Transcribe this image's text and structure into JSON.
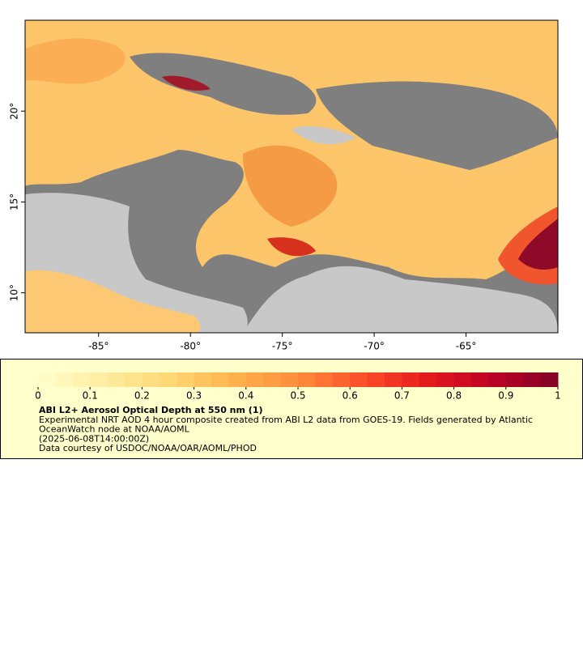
{
  "map": {
    "xlim": [
      -89,
      -60
    ],
    "ylim": [
      7.8,
      25
    ],
    "xticks": [
      {
        "value": -85,
        "label": "-85°"
      },
      {
        "value": -80,
        "label": "-80°"
      },
      {
        "value": -75,
        "label": "-75°"
      },
      {
        "value": -70,
        "label": "-70°"
      },
      {
        "value": -65,
        "label": "-65°"
      }
    ],
    "yticks": [
      {
        "value": 10,
        "label": "10°"
      },
      {
        "value": 15,
        "label": "15°"
      },
      {
        "value": 20,
        "label": "20°"
      }
    ]
  },
  "legend": {
    "range": [
      0,
      1
    ],
    "ticks": [
      0,
      0.1,
      0.2,
      0.3,
      0.4,
      0.5,
      0.6,
      0.7,
      0.8,
      0.9,
      1
    ],
    "colors": [
      "#ffffcc",
      "#ffeda0",
      "#fed976",
      "#feb24c",
      "#fd8d3c",
      "#fc4e2a",
      "#e31a1c",
      "#bd0026",
      "#800026"
    ],
    "title": "ABI L2+ Aerosol Optical Depth at 550 nm (1)",
    "lines": [
      "Experimental NRT AOD 4 hour composite created from ABI L2 data from GOES-19. Fields generated by Atlantic",
      "OceanWatch node at NOAA/AOML",
      "(2025-06-08T14:00:00Z)",
      "Data courtesy of USDOC/NOAA/OAR/AOML/PHOD"
    ]
  }
}
